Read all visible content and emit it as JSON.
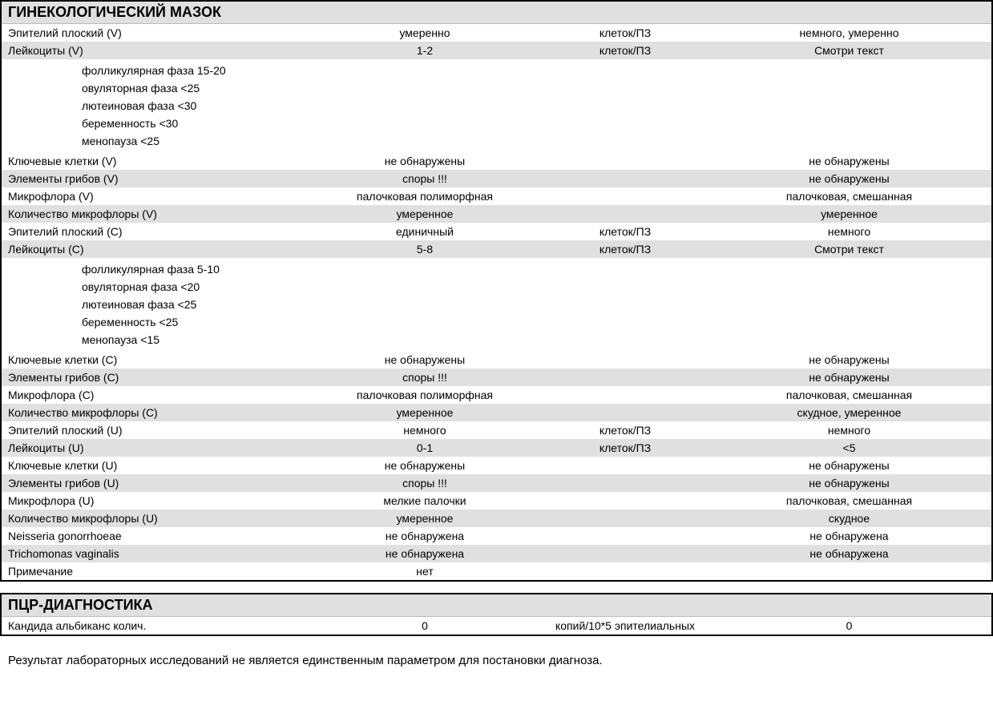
{
  "section1": {
    "title": "ГИНЕКОЛОГИЧЕСКИЙ МАЗОК",
    "rows": [
      {
        "name": "Эпителий плоский (V)",
        "value": "умеренно",
        "unit": "клеток/ПЗ",
        "ref": "немного, умеренно",
        "alt": false
      },
      {
        "name": "Лейкоциты (V)",
        "value": "1-2",
        "unit": "клеток/ПЗ",
        "ref": "Смотри текст",
        "alt": true,
        "sub": [
          "фолликулярная фаза 15-20",
          "овуляторная фаза <25",
          "лютеиновая фаза <30",
          "беременность <30",
          "менопауза <25"
        ]
      },
      {
        "name": "Ключевые клетки (V)",
        "value": "не обнаружены",
        "unit": "",
        "ref": "не обнаружены",
        "alt": false
      },
      {
        "name": "Элементы грибов (V)",
        "value": "споры !!!",
        "unit": "",
        "ref": "не обнаружены",
        "alt": true
      },
      {
        "name": "Микрофлора (V)",
        "value": "палочковая полиморфная",
        "unit": "",
        "ref": "палочковая, смешанная",
        "alt": false
      },
      {
        "name": "Количество микрофлоры (V)",
        "value": "умеренное",
        "unit": "",
        "ref": "умеренное",
        "alt": true
      },
      {
        "name": "Эпителий плоский (C)",
        "value": "единичный",
        "unit": "клеток/ПЗ",
        "ref": "немного",
        "alt": false
      },
      {
        "name": "Лейкоциты (C)",
        "value": "5-8",
        "unit": "клеток/ПЗ",
        "ref": "Смотри текст",
        "alt": true,
        "sub": [
          "фолликулярная фаза  5-10",
          "овуляторная фаза <20",
          "лютеиновая фаза <25",
          "беременность <25",
          "менопауза <15"
        ]
      },
      {
        "name": "Ключевые клетки (C)",
        "value": "не обнаружены",
        "unit": "",
        "ref": "не обнаружены",
        "alt": false
      },
      {
        "name": "Элементы грибов (C)",
        "value": "споры !!!",
        "unit": "",
        "ref": "не обнаружены",
        "alt": true
      },
      {
        "name": "Микрофлора (C)",
        "value": "палочковая полиморфная",
        "unit": "",
        "ref": "палочковая, смешанная",
        "alt": false
      },
      {
        "name": "Количество микрофлоры (C)",
        "value": "умеренное",
        "unit": "",
        "ref": "скудное, умеренное",
        "alt": true
      },
      {
        "name": "Эпителий плоский (U)",
        "value": "немного",
        "unit": "клеток/ПЗ",
        "ref": "немного",
        "alt": false
      },
      {
        "name": "Лейкоциты (U)",
        "value": "0-1",
        "unit": "клеток/ПЗ",
        "ref": "<5",
        "alt": true
      },
      {
        "name": "Ключевые клетки (U)",
        "value": "не обнаружены",
        "unit": "",
        "ref": "не обнаружены",
        "alt": false
      },
      {
        "name": "Элементы грибов (U)",
        "value": "споры !!!",
        "unit": "",
        "ref": "не обнаружены",
        "alt": true
      },
      {
        "name": "Микрофлора (U)",
        "value": "мелкие палочки",
        "unit": "",
        "ref": "палочковая, смешанная",
        "alt": false
      },
      {
        "name": "Количество микрофлоры (U)",
        "value": "умеренное",
        "unit": "",
        "ref": "скудное",
        "alt": true
      },
      {
        "name": "Neisseria gonorrhoeae",
        "value": "не обнаружена",
        "unit": "",
        "ref": "не обнаружена",
        "alt": false
      },
      {
        "name": "Trichomonas vaginalis",
        "value": "не обнаружена",
        "unit": "",
        "ref": "не обнаружена",
        "alt": true
      },
      {
        "name": "Примечание",
        "value": "нет",
        "unit": "",
        "ref": "",
        "alt": false
      }
    ]
  },
  "section2": {
    "title": "ПЦР-ДИАГНОСТИКА",
    "rows": [
      {
        "name": "Кандида альбиканс колич.",
        "value": "0",
        "unit": "копий/10*5 эпителиальных",
        "ref": "0",
        "alt": false
      }
    ]
  },
  "footer": "Результат лабораторных исследований не является единственным параметром для постановки диагноза.",
  "style": {
    "alt_bg": "#e0e0e0",
    "border_color": "#000000",
    "text_color": "#000000",
    "font_size": 14,
    "header_font_size": 18
  }
}
